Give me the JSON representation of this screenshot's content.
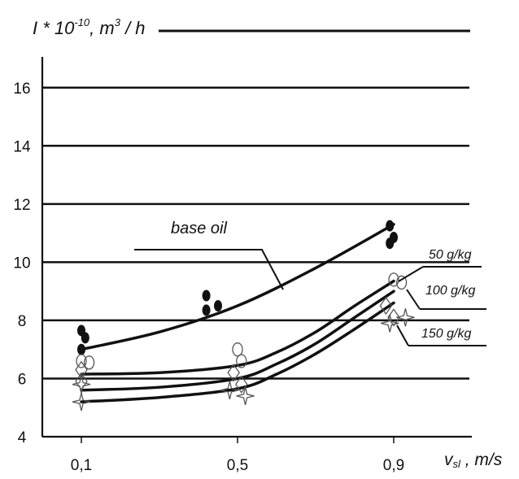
{
  "chart_data": {
    "type": "line",
    "ylabel": "I * 10^-10, m^3/h",
    "xlabel": "v_sl, m/s",
    "x_tick_labels": [
      "0,1",
      "0,5",
      "0,9"
    ],
    "y_tick_labels": [
      "4",
      "6",
      "8",
      "10",
      "12",
      "14",
      "16"
    ],
    "xlim": [
      0.0,
      1.1
    ],
    "ylim": [
      4,
      17
    ],
    "grid": "horizontal",
    "series": [
      {
        "name": "base oil",
        "color": "#111111",
        "x": [
          0.1,
          0.3,
          0.5,
          0.7,
          0.9
        ],
        "y": [
          7.0,
          7.6,
          8.5,
          9.8,
          11.3
        ],
        "points": [
          {
            "x": 0.1,
            "y": 7.65
          },
          {
            "x": 0.11,
            "y": 7.4
          },
          {
            "x": 0.1,
            "y": 7.0
          },
          {
            "x": 0.42,
            "y": 8.85
          },
          {
            "x": 0.42,
            "y": 8.35
          },
          {
            "x": 0.45,
            "y": 8.5
          },
          {
            "x": 0.89,
            "y": 11.25
          },
          {
            "x": 0.9,
            "y": 10.85
          },
          {
            "x": 0.89,
            "y": 10.65
          }
        ],
        "marker": "filled-circle"
      },
      {
        "name": "50 g/kg",
        "color": "#111111",
        "x": [
          0.1,
          0.3,
          0.5,
          0.6,
          0.7,
          0.8,
          0.9
        ],
        "y": [
          6.15,
          6.2,
          6.45,
          6.9,
          7.6,
          8.5,
          9.35
        ],
        "points": [
          {
            "x": 0.1,
            "y": 6.6
          },
          {
            "x": 0.12,
            "y": 6.55
          },
          {
            "x": 0.5,
            "y": 7.0
          },
          {
            "x": 0.51,
            "y": 6.6
          },
          {
            "x": 0.9,
            "y": 9.4
          },
          {
            "x": 0.92,
            "y": 9.3
          }
        ],
        "marker": "open-circle"
      },
      {
        "name": "100 g/kg",
        "color": "#111111",
        "x": [
          0.1,
          0.3,
          0.5,
          0.6,
          0.7,
          0.8,
          0.9
        ],
        "y": [
          5.6,
          5.7,
          6.0,
          6.5,
          7.2,
          8.1,
          9.0
        ],
        "points": [
          {
            "x": 0.1,
            "y": 6.3
          },
          {
            "x": 0.1,
            "y": 5.9
          },
          {
            "x": 0.49,
            "y": 6.2
          },
          {
            "x": 0.51,
            "y": 5.8
          },
          {
            "x": 0.88,
            "y": 8.5
          },
          {
            "x": 0.9,
            "y": 8.1
          }
        ],
        "marker": "open-diamond"
      },
      {
        "name": "150 g/kg",
        "color": "#111111",
        "x": [
          0.1,
          0.3,
          0.5,
          0.6,
          0.7,
          0.8,
          0.9
        ],
        "y": [
          5.2,
          5.35,
          5.65,
          6.15,
          6.85,
          7.7,
          8.6
        ],
        "points": [
          {
            "x": 0.1,
            "y": 5.8
          },
          {
            "x": 0.1,
            "y": 5.2
          },
          {
            "x": 0.48,
            "y": 5.6
          },
          {
            "x": 0.52,
            "y": 5.4
          },
          {
            "x": 0.89,
            "y": 7.9
          },
          {
            "x": 0.93,
            "y": 8.1
          }
        ],
        "marker": "open-star"
      }
    ]
  },
  "labels": {
    "y_axis": {
      "main": "I * 10",
      "exp": "-10",
      "unit": ", m",
      "unit_exp": "3",
      "tail": " / h"
    },
    "x_axis": {
      "main": "v",
      "sub": "sl",
      "tail": " , m/s"
    },
    "legend": [
      "base oil",
      "50 g/kg",
      "100 g/kg",
      "150 g/kg"
    ]
  }
}
